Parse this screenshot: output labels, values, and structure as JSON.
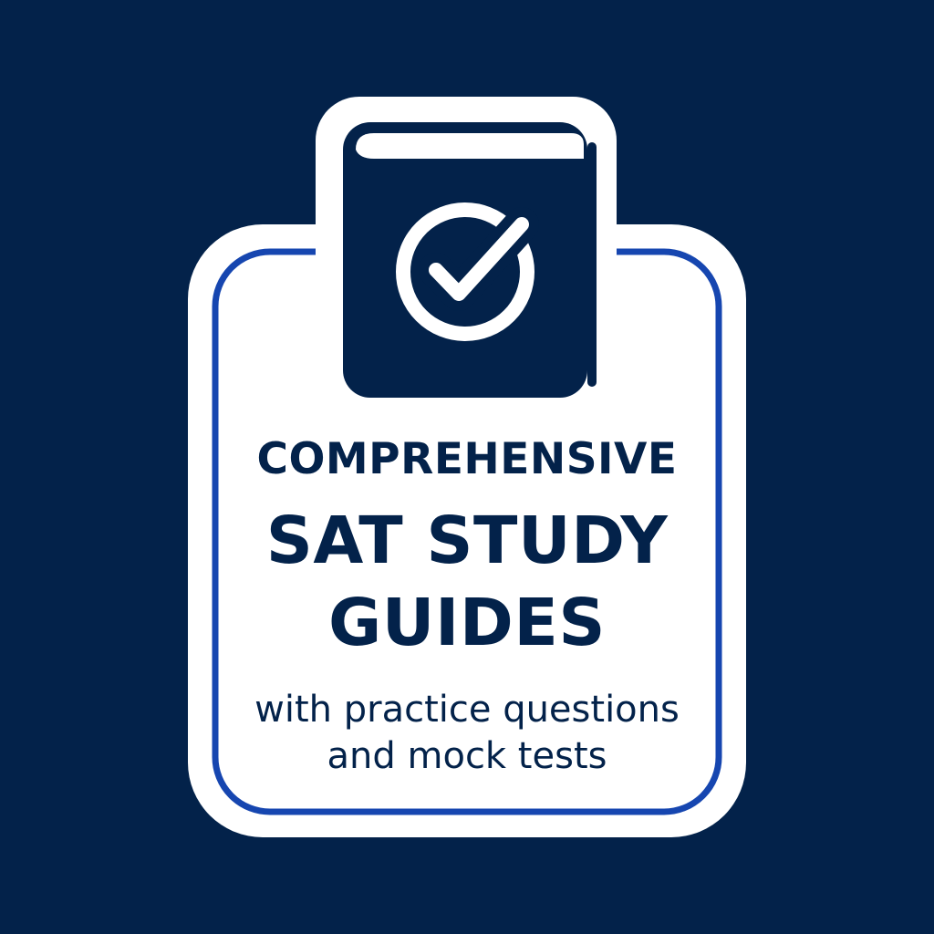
{
  "badge": {
    "title_line1": "COMPREHENSIVE",
    "title_line2": "SAT STUDY",
    "title_line3": "GUIDES",
    "subtitle_line1": "with practice questions",
    "subtitle_line2": "and mock tests"
  },
  "icons": {
    "book": "book-icon",
    "check": "check-circle-icon"
  },
  "colors": {
    "background": "#03224a",
    "navy": "#03224a",
    "accent_blue": "#1646b0",
    "card": "#ffffff"
  }
}
